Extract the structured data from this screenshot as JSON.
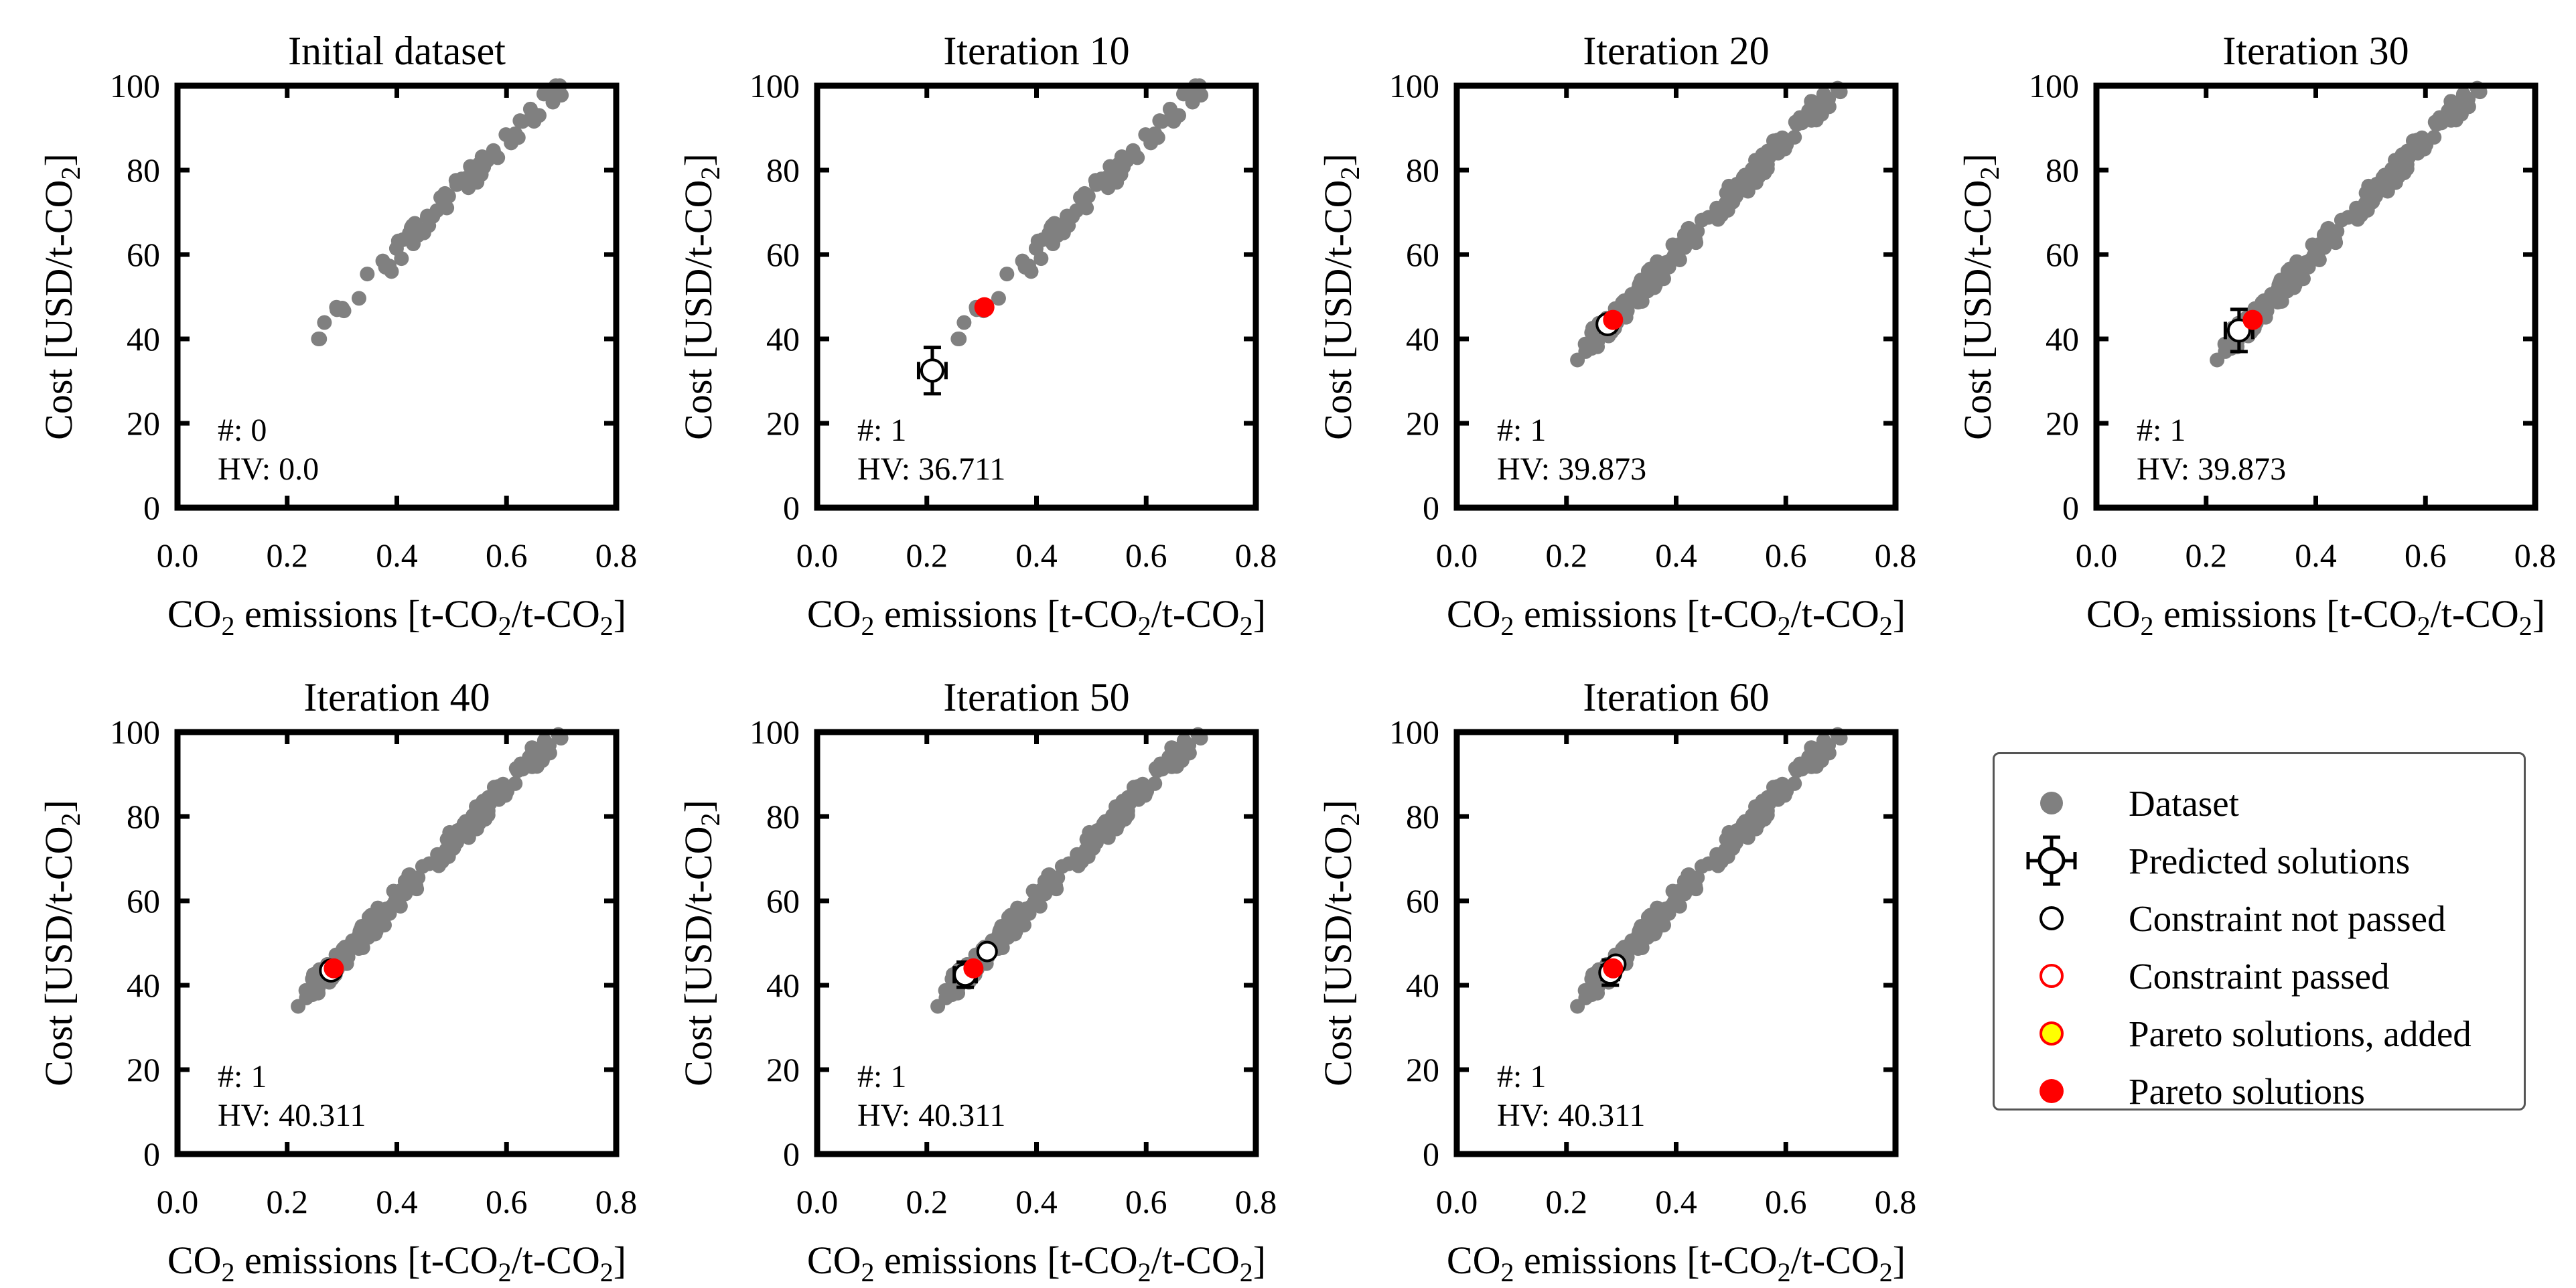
{
  "figure": {
    "panel_counter_label": "#:",
    "panel_hv_label": "HV:",
    "xlabel_main": "CO",
    "xlabel_sub": "2",
    "xlabel_rest": " emissions [t-CO",
    "xlabel_sub2": "2",
    "xlabel_rest2": "/t-CO",
    "xlabel_sub3": "2",
    "xlabel_end": "]",
    "ylabel_main": "Cost [USD/t-CO",
    "ylabel_sub": "2",
    "ylabel_end": "]"
  },
  "legend": {
    "items": [
      {
        "label": "Dataset",
        "icon": "gray-filled-circle"
      },
      {
        "label": "Predicted solutions",
        "icon": "open-circle-with-error-bars"
      },
      {
        "label": "Constraint not passed",
        "icon": "black-open-circle"
      },
      {
        "label": "Constraint passed",
        "icon": "red-open-circle"
      },
      {
        "label": "Pareto solutions, added",
        "icon": "yellow-circle-red-edge"
      },
      {
        "label": "Pareto solutions",
        "icon": "red-filled-circle"
      }
    ]
  },
  "colors": {
    "dataset": "#808080",
    "pareto": "#ff0000",
    "pareto_added_fill": "#ffff00",
    "axis": "#000000",
    "legend_border": "#555555"
  },
  "chart_data": [
    {
      "type": "scatter",
      "title": "Initial dataset",
      "xlim": [
        0,
        0.8
      ],
      "ylim": [
        0,
        100
      ],
      "xticks": [
        "0.0",
        "0.2",
        "0.4",
        "0.6",
        "0.8"
      ],
      "yticks": [
        "0",
        "20",
        "40",
        "60",
        "80",
        "100"
      ],
      "count": "0",
      "hv": "0.0",
      "dataset_spread": "initial",
      "predicted": [],
      "constraint_not_passed": [],
      "pareto": []
    },
    {
      "type": "scatter",
      "title": "Iteration 10",
      "xlim": [
        0,
        0.8
      ],
      "ylim": [
        0,
        100
      ],
      "xticks": [
        "0.0",
        "0.2",
        "0.4",
        "0.6",
        "0.8"
      ],
      "yticks": [
        "0",
        "20",
        "40",
        "60",
        "80",
        "100"
      ],
      "count": "1",
      "hv": "36.711",
      "dataset_spread": "initial",
      "predicted": [
        {
          "x": 0.21,
          "y": 32.5,
          "xerr": 0.025,
          "yerr": 5.5
        }
      ],
      "constraint_not_passed": [],
      "pareto": [
        {
          "x": 0.305,
          "y": 47.5
        }
      ]
    },
    {
      "type": "scatter",
      "title": "Iteration 20",
      "xlim": [
        0,
        0.8
      ],
      "ylim": [
        0,
        100
      ],
      "xticks": [
        "0.0",
        "0.2",
        "0.4",
        "0.6",
        "0.8"
      ],
      "yticks": [
        "0",
        "20",
        "40",
        "60",
        "80",
        "100"
      ],
      "count": "1",
      "hv": "39.873",
      "dataset_spread": "extended",
      "predicted": [
        {
          "x": 0.275,
          "y": 43.5,
          "xerr": 0.012,
          "yerr": 1.8
        }
      ],
      "constraint_not_passed": [],
      "pareto": [
        {
          "x": 0.285,
          "y": 44.5
        }
      ]
    },
    {
      "type": "scatter",
      "title": "Iteration 30",
      "xlim": [
        0,
        0.8
      ],
      "ylim": [
        0,
        100
      ],
      "xticks": [
        "0.0",
        "0.2",
        "0.4",
        "0.6",
        "0.8"
      ],
      "yticks": [
        "0",
        "20",
        "40",
        "60",
        "80",
        "100"
      ],
      "count": "1",
      "hv": "39.873",
      "dataset_spread": "extended",
      "predicted": [
        {
          "x": 0.26,
          "y": 42.0,
          "xerr": 0.025,
          "yerr": 5.0
        }
      ],
      "constraint_not_passed": [],
      "pareto": [
        {
          "x": 0.285,
          "y": 44.5
        }
      ]
    },
    {
      "type": "scatter",
      "title": "Iteration 40",
      "xlim": [
        0,
        0.8
      ],
      "ylim": [
        0,
        100
      ],
      "xticks": [
        "0.0",
        "0.2",
        "0.4",
        "0.6",
        "0.8"
      ],
      "yticks": [
        "0",
        "20",
        "40",
        "60",
        "80",
        "100"
      ],
      "count": "1",
      "hv": "40.311",
      "dataset_spread": "extended",
      "predicted": [
        {
          "x": 0.28,
          "y": 43.5,
          "xerr": 0.012,
          "yerr": 1.5
        }
      ],
      "constraint_not_passed": [],
      "pareto": [
        {
          "x": 0.285,
          "y": 44.0
        }
      ]
    },
    {
      "type": "scatter",
      "title": "Iteration 50",
      "xlim": [
        0,
        0.8
      ],
      "ylim": [
        0,
        100
      ],
      "xticks": [
        "0.0",
        "0.2",
        "0.4",
        "0.6",
        "0.8"
      ],
      "yticks": [
        "0",
        "20",
        "40",
        "60",
        "80",
        "100"
      ],
      "count": "1",
      "hv": "40.311",
      "dataset_spread": "extended",
      "predicted": [
        {
          "x": 0.27,
          "y": 42.5,
          "xerr": 0.02,
          "yerr": 3.0
        }
      ],
      "constraint_not_passed": [
        {
          "x": 0.31,
          "y": 48.0
        }
      ],
      "pareto": [
        {
          "x": 0.285,
          "y": 44.0
        }
      ]
    },
    {
      "type": "scatter",
      "title": "Iteration 60",
      "xlim": [
        0,
        0.8
      ],
      "ylim": [
        0,
        100
      ],
      "xticks": [
        "0.0",
        "0.2",
        "0.4",
        "0.6",
        "0.8"
      ],
      "yticks": [
        "0",
        "20",
        "40",
        "60",
        "80",
        "100"
      ],
      "count": "1",
      "hv": "40.311",
      "dataset_spread": "extended",
      "predicted": [
        {
          "x": 0.28,
          "y": 43.0,
          "xerr": 0.015,
          "yerr": 3.0
        }
      ],
      "constraint_not_passed": [
        {
          "x": 0.29,
          "y": 45.0
        }
      ],
      "pareto": [
        {
          "x": 0.285,
          "y": 44.0
        }
      ]
    }
  ]
}
